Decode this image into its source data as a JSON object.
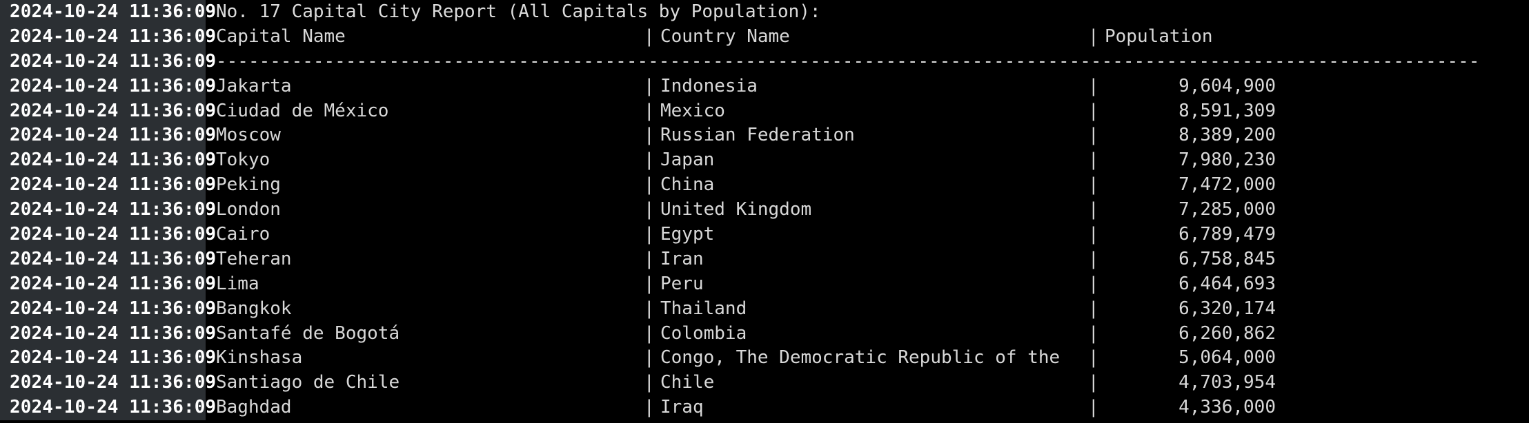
{
  "colors": {
    "background": "#000000",
    "timestamp_bg": "#2b2f33",
    "timestamp_fg": "#ffffff",
    "text": "#dcdcdc"
  },
  "log": {
    "timestamp": "2024-10-24 11:36:09",
    "title": "No. 17 Capital City Report (All Capitals by Population):",
    "headers": {
      "capital": "Capital Name",
      "country": "Country Name",
      "population": "Population"
    },
    "separator_char": "-",
    "column_separator": "|",
    "rows": [
      {
        "capital": "Jakarta",
        "country": "Indonesia",
        "population": "9,604,900"
      },
      {
        "capital": "Ciudad de México",
        "country": "Mexico",
        "population": "8,591,309"
      },
      {
        "capital": "Moscow",
        "country": "Russian Federation",
        "population": "8,389,200"
      },
      {
        "capital": "Tokyo",
        "country": "Japan",
        "population": "7,980,230"
      },
      {
        "capital": "Peking",
        "country": "China",
        "population": "7,472,000"
      },
      {
        "capital": "London",
        "country": "United Kingdom",
        "population": "7,285,000"
      },
      {
        "capital": "Cairo",
        "country": "Egypt",
        "population": "6,789,479"
      },
      {
        "capital": "Teheran",
        "country": "Iran",
        "population": "6,758,845"
      },
      {
        "capital": "Lima",
        "country": "Peru",
        "population": "6,464,693"
      },
      {
        "capital": "Bangkok",
        "country": "Thailand",
        "population": "6,320,174"
      },
      {
        "capital": "Santafé de Bogotá",
        "country": "Colombia",
        "population": "6,260,862"
      },
      {
        "capital": "Kinshasa",
        "country": "Congo, The Democratic Republic of the",
        "population": "5,064,000"
      },
      {
        "capital": "Santiago de Chile",
        "country": "Chile",
        "population": "4,703,954"
      },
      {
        "capital": "Baghdad",
        "country": "Iraq",
        "population": "4,336,000"
      }
    ]
  }
}
